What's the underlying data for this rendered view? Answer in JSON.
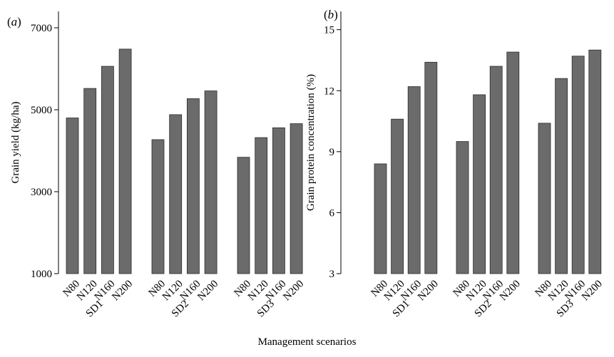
{
  "xlabel": "Management scenarios",
  "chart_data": [
    {
      "type": "bar",
      "panel_label": "(a)",
      "ylabel": "Grain yield (kg/ha)",
      "ylim": [
        1000,
        7400
      ],
      "yticks": [
        1000,
        3000,
        5000,
        7000
      ],
      "groups": [
        {
          "name": "SD1",
          "categories": [
            "N80",
            "N120",
            "N160",
            "N200"
          ],
          "values": [
            4800,
            5520,
            6060,
            6480
          ]
        },
        {
          "name": "SD2",
          "categories": [
            "N80",
            "N120",
            "N160",
            "N200"
          ],
          "values": [
            4270,
            4880,
            5270,
            5460
          ]
        },
        {
          "name": "SD3",
          "categories": [
            "N80",
            "N120",
            "N160",
            "N200"
          ],
          "values": [
            3840,
            4320,
            4560,
            4660
          ]
        }
      ],
      "grid": false
    },
    {
      "type": "bar",
      "panel_label": "(b)",
      "ylabel": "Grain protein concentration (%)",
      "ylim": [
        3,
        15.9
      ],
      "yticks": [
        3,
        6,
        9,
        12,
        15
      ],
      "groups": [
        {
          "name": "SD1",
          "categories": [
            "N80",
            "N120",
            "N160",
            "N200"
          ],
          "values": [
            8.4,
            10.6,
            12.2,
            13.4
          ]
        },
        {
          "name": "SD2",
          "categories": [
            "N80",
            "N120",
            "N160",
            "N200"
          ],
          "values": [
            9.5,
            11.8,
            13.2,
            13.9
          ]
        },
        {
          "name": "SD3",
          "categories": [
            "N80",
            "N120",
            "N160",
            "N200"
          ],
          "values": [
            10.4,
            12.6,
            13.7,
            14.0
          ]
        }
      ],
      "grid": false
    }
  ]
}
